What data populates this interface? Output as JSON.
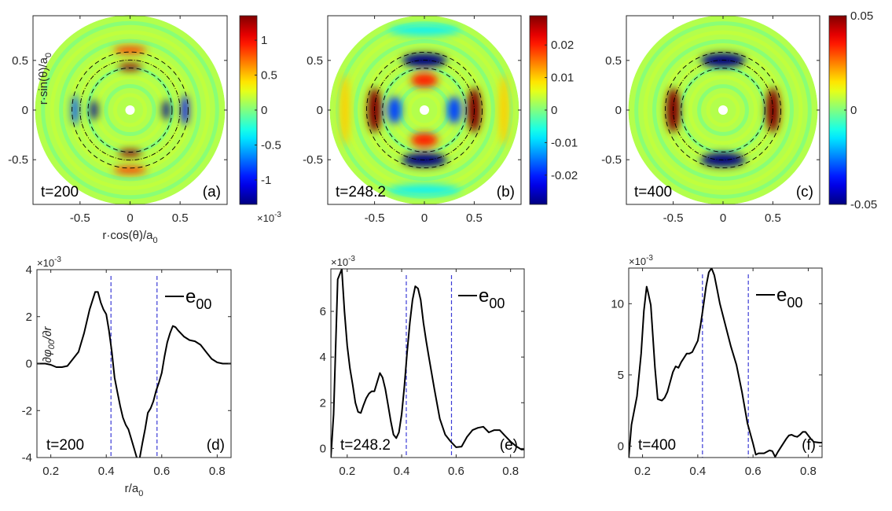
{
  "figure": {
    "colormap": "jet",
    "colors": {
      "axes": "#262626",
      "curve": "#000000",
      "guide_line": "#3b3bd6",
      "ring_line": "#000000"
    }
  },
  "chart_data": [
    {
      "id": "a",
      "type": "heatmap",
      "label": "(a)",
      "time_label": "t=200",
      "title": "",
      "xlabel": "r·cos(θ)/a0",
      "ylabel": "r·sin(θ)/a0",
      "xlim": [
        -0.97,
        0.97
      ],
      "ylim": [
        -0.95,
        0.95
      ],
      "xticks": [
        -0.5,
        0,
        0.5
      ],
      "xticklabels": [
        "-0.5",
        "0",
        "0.5"
      ],
      "yticks": [
        0.5,
        0,
        -0.5
      ],
      "yticklabels": [
        "0.5",
        "0",
        "-0.5"
      ],
      "colorbar": {
        "clim": [
          -1.35,
          1.35
        ],
        "ticks": [
          1,
          0.5,
          0,
          -0.5,
          -1
        ],
        "ticklabels": [
          "1",
          "0.5",
          "0",
          "-0.5",
          "-1"
        ],
        "exponent_label": "×10^-3"
      },
      "rings": [
        0.42,
        0.5,
        0.58
      ],
      "pattern": "m1-shear",
      "features": [
        {
          "r": 0.43,
          "theta_deg": 90,
          "value": 1.3
        },
        {
          "r": 0.43,
          "theta_deg": 270,
          "value": 1.3
        },
        {
          "r": 0.36,
          "theta_deg": 180,
          "value": -1.3
        },
        {
          "r": 0.36,
          "theta_deg": 0,
          "value": -1.3
        },
        {
          "r": 0.55,
          "theta_deg": 0,
          "value": -1.0
        },
        {
          "r": 0.55,
          "theta_deg": 180,
          "value": -0.8
        },
        {
          "r": 0.6,
          "theta_deg": 90,
          "value": 0.9
        },
        {
          "r": 0.6,
          "theta_deg": 270,
          "value": 0.9
        }
      ]
    },
    {
      "id": "b",
      "type": "heatmap",
      "label": "(b)",
      "time_label": "t=248.2",
      "xlabel": "",
      "ylabel": "",
      "xlim": [
        -0.97,
        0.97
      ],
      "ylim": [
        -0.95,
        0.95
      ],
      "xticks": [
        -0.5,
        0,
        0.5
      ],
      "xticklabels": [
        "-0.5",
        "0",
        "0.5"
      ],
      "yticks": [
        0.5,
        0,
        -0.5
      ],
      "yticklabels": [
        "0.5",
        "0",
        "-0.5"
      ],
      "colorbar": {
        "clim": [
          -0.029,
          0.029
        ],
        "ticks": [
          0.02,
          0.01,
          0,
          -0.01,
          -0.02
        ],
        "ticklabels": [
          "0.02",
          "0.01",
          "0",
          "-0.01",
          "-0.02"
        ]
      },
      "rings": [
        0.42,
        0.5,
        0.58
      ],
      "features": [
        {
          "r": 0.5,
          "theta_deg": 0,
          "value": 0.029
        },
        {
          "r": 0.5,
          "theta_deg": 180,
          "value": 0.029
        },
        {
          "r": 0.5,
          "theta_deg": 90,
          "value": -0.029
        },
        {
          "r": 0.5,
          "theta_deg": 270,
          "value": -0.029
        },
        {
          "r": 0.3,
          "theta_deg": 90,
          "value": 0.02
        },
        {
          "r": 0.3,
          "theta_deg": 270,
          "value": 0.02
        },
        {
          "r": 0.3,
          "theta_deg": 0,
          "value": -0.018
        },
        {
          "r": 0.3,
          "theta_deg": 180,
          "value": -0.018
        },
        {
          "r": 0.8,
          "theta_deg": 0,
          "value": 0.01
        },
        {
          "r": 0.8,
          "theta_deg": 180,
          "value": 0.01
        },
        {
          "r": 0.8,
          "theta_deg": 90,
          "value": -0.008
        },
        {
          "r": 0.8,
          "theta_deg": 270,
          "value": -0.008
        }
      ]
    },
    {
      "id": "c",
      "type": "heatmap",
      "label": "(c)",
      "time_label": "t=400",
      "xlabel": "",
      "ylabel": "",
      "xlim": [
        -0.97,
        0.97
      ],
      "ylim": [
        -0.95,
        0.95
      ],
      "xticks": [
        -0.5,
        0,
        0.5
      ],
      "xticklabels": [
        "-0.5",
        "0",
        "0.5"
      ],
      "yticks": [
        0.5,
        0,
        -0.5
      ],
      "yticklabels": [
        "0.5",
        "0",
        "-0.5"
      ],
      "colorbar": {
        "clim": [
          -0.05,
          0.05
        ],
        "ticks": [
          0.05,
          0,
          -0.05
        ],
        "ticklabels": [
          "0.05",
          "0",
          "-0.05"
        ]
      },
      "rings": [
        0.42,
        0.5,
        0.58
      ],
      "features": [
        {
          "r": 0.5,
          "theta_deg": 0,
          "value": 0.05
        },
        {
          "r": 0.5,
          "theta_deg": 180,
          "value": 0.05
        },
        {
          "r": 0.5,
          "theta_deg": 90,
          "value": -0.05
        },
        {
          "r": 0.5,
          "theta_deg": 270,
          "value": -0.05
        }
      ]
    },
    {
      "id": "d",
      "type": "line",
      "label": "(d)",
      "time_label": "t=200",
      "xlabel": "r/a0",
      "ylabel": "∂φ00/∂r",
      "exponent_label": "×10^-3",
      "xlim": [
        0.15,
        0.85
      ],
      "ylim": [
        -4,
        4
      ],
      "xticks": [
        0.2,
        0.4,
        0.6,
        0.8
      ],
      "xticklabels": [
        "0.2",
        "0.4",
        "0.6",
        "0.8"
      ],
      "yticks": [
        4,
        2,
        0,
        -2,
        -4
      ],
      "yticklabels": [
        "4",
        "2",
        "0",
        "-2",
        "-4"
      ],
      "vlines": [
        0.417,
        0.583
      ],
      "legend": {
        "entry": "e",
        "subscript": "00",
        "location": "top-right"
      },
      "series": [
        {
          "name": "e00",
          "x": [
            0.15,
            0.18,
            0.2,
            0.22,
            0.24,
            0.26,
            0.28,
            0.3,
            0.32,
            0.34,
            0.36,
            0.37,
            0.38,
            0.39,
            0.4,
            0.41,
            0.42,
            0.43,
            0.44,
            0.45,
            0.46,
            0.47,
            0.48,
            0.49,
            0.5,
            0.51,
            0.52,
            0.53,
            0.54,
            0.55,
            0.56,
            0.57,
            0.58,
            0.59,
            0.6,
            0.61,
            0.62,
            0.63,
            0.64,
            0.65,
            0.66,
            0.68,
            0.7,
            0.72,
            0.74,
            0.76,
            0.78,
            0.8,
            0.82,
            0.84,
            0.85
          ],
          "y": [
            0.0,
            0.0,
            -0.05,
            -0.15,
            -0.15,
            -0.1,
            0.2,
            0.5,
            1.3,
            2.3,
            3.05,
            3.05,
            2.6,
            2.3,
            2.1,
            1.4,
            0.5,
            -0.6,
            -1.2,
            -1.8,
            -2.3,
            -2.6,
            -2.8,
            -3.2,
            -3.6,
            -4.0,
            -4.05,
            -3.4,
            -2.8,
            -2.1,
            -1.9,
            -1.6,
            -1.15,
            -0.8,
            -0.4,
            0.3,
            0.9,
            1.3,
            1.6,
            1.55,
            1.4,
            1.15,
            1.0,
            0.95,
            0.8,
            0.5,
            0.2,
            0.05,
            0.0,
            0.0,
            0.0
          ]
        }
      ]
    },
    {
      "id": "e",
      "type": "line",
      "label": "(e)",
      "time_label": "t=248.2",
      "xlabel": "",
      "ylabel": "",
      "exponent_label": "×10^-3",
      "xlim": [
        0.14,
        0.85
      ],
      "ylim": [
        -0.4,
        7.86
      ],
      "xticks": [
        0.2,
        0.4,
        0.6,
        0.8
      ],
      "xticklabels": [
        "0.2",
        "0.4",
        "0.6",
        "0.8"
      ],
      "yticks": [
        6,
        4,
        2,
        0
      ],
      "yticklabels": [
        "6",
        "4",
        "2",
        "0"
      ],
      "vlines": [
        0.417,
        0.583
      ],
      "legend": {
        "entry": "e",
        "subscript": "00",
        "location": "top-right"
      },
      "series": [
        {
          "name": "e00",
          "x": [
            0.14,
            0.15,
            0.165,
            0.18,
            0.19,
            0.2,
            0.21,
            0.22,
            0.23,
            0.24,
            0.25,
            0.26,
            0.27,
            0.28,
            0.29,
            0.3,
            0.31,
            0.32,
            0.33,
            0.34,
            0.35,
            0.36,
            0.37,
            0.38,
            0.39,
            0.4,
            0.41,
            0.42,
            0.43,
            0.44,
            0.45,
            0.46,
            0.47,
            0.48,
            0.49,
            0.5,
            0.52,
            0.54,
            0.56,
            0.58,
            0.6,
            0.62,
            0.64,
            0.66,
            0.68,
            0.7,
            0.72,
            0.74,
            0.76,
            0.78,
            0.8,
            0.82,
            0.84,
            0.85
          ],
          "y": [
            -0.4,
            1.5,
            7.4,
            7.85,
            6.0,
            4.5,
            3.5,
            2.8,
            2.0,
            1.6,
            1.55,
            1.9,
            2.2,
            2.4,
            2.5,
            2.5,
            2.9,
            3.3,
            3.1,
            2.6,
            1.9,
            1.2,
            0.6,
            0.45,
            0.7,
            1.5,
            2.7,
            4.2,
            5.5,
            6.5,
            7.1,
            7.0,
            6.5,
            5.5,
            4.7,
            4.0,
            2.6,
            1.3,
            0.6,
            0.3,
            0.05,
            0.08,
            0.5,
            0.8,
            0.9,
            0.95,
            0.7,
            0.8,
            0.8,
            0.55,
            0.3,
            0.1,
            -0.05,
            -0.05
          ]
        }
      ]
    },
    {
      "id": "f",
      "type": "line",
      "label": "(f)",
      "time_label": "t=400",
      "xlabel": "",
      "ylabel": "",
      "exponent_label": "×10^-3",
      "xlim": [
        0.15,
        0.85
      ],
      "ylim": [
        -0.8,
        12.5
      ],
      "xticks": [
        0.2,
        0.4,
        0.6,
        0.8
      ],
      "xticklabels": [
        "0.2",
        "0.4",
        "0.6",
        "0.8"
      ],
      "yticks": [
        10,
        5,
        0
      ],
      "yticklabels": [
        "10",
        "5",
        "0"
      ],
      "vlines": [
        0.417,
        0.583
      ],
      "legend": {
        "entry": "e",
        "subscript": "00",
        "location": "top-right"
      },
      "series": [
        {
          "name": "e00",
          "x": [
            0.15,
            0.16,
            0.18,
            0.195,
            0.205,
            0.215,
            0.22,
            0.23,
            0.245,
            0.255,
            0.27,
            0.28,
            0.29,
            0.3,
            0.31,
            0.32,
            0.33,
            0.34,
            0.35,
            0.36,
            0.37,
            0.38,
            0.39,
            0.4,
            0.41,
            0.42,
            0.43,
            0.44,
            0.45,
            0.46,
            0.47,
            0.48,
            0.5,
            0.52,
            0.54,
            0.56,
            0.58,
            0.6,
            0.61,
            0.62,
            0.64,
            0.66,
            0.67,
            0.68,
            0.69,
            0.7,
            0.72,
            0.73,
            0.74,
            0.75,
            0.76,
            0.77,
            0.78,
            0.79,
            0.8,
            0.81,
            0.82,
            0.84,
            0.85
          ],
          "y": [
            -0.8,
            1.5,
            3.5,
            6.5,
            9.5,
            11.2,
            10.8,
            9.9,
            5.5,
            3.3,
            3.2,
            3.4,
            3.8,
            4.5,
            5.2,
            5.6,
            5.5,
            5.9,
            6.2,
            6.5,
            6.5,
            6.6,
            7.0,
            7.4,
            8.5,
            9.8,
            11.2,
            12.2,
            12.5,
            12.0,
            11.0,
            10.0,
            8.5,
            7.0,
            5.7,
            3.8,
            1.6,
            0.2,
            -0.6,
            -0.5,
            -0.5,
            -0.3,
            -0.35,
            -0.75,
            -0.4,
            -0.1,
            0.5,
            0.75,
            0.8,
            0.7,
            0.65,
            0.8,
            1.0,
            1.0,
            0.75,
            0.5,
            0.3,
            0.25,
            0.25
          ]
        }
      ]
    }
  ]
}
